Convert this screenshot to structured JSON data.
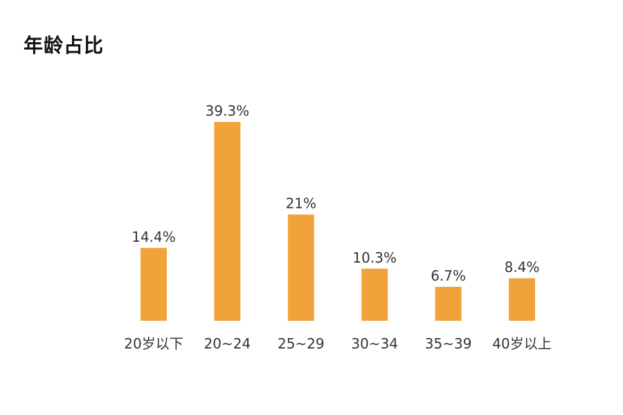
{
  "chart_data": {
    "type": "bar",
    "title": "年龄占比",
    "categories": [
      "20岁以下",
      "20~24",
      "25~29",
      "30~34",
      "35~39",
      "40岁以上"
    ],
    "values": [
      14.4,
      39.3,
      21,
      10.3,
      6.7,
      8.4
    ],
    "value_labels": [
      "14.4%",
      "39.3%",
      "21%",
      "10.3%",
      "6.7%",
      "8.4%"
    ],
    "xlabel": "",
    "ylabel": "",
    "ylim": [
      0,
      39.3
    ],
    "grid": false,
    "bar_color": "#f0a33a"
  }
}
